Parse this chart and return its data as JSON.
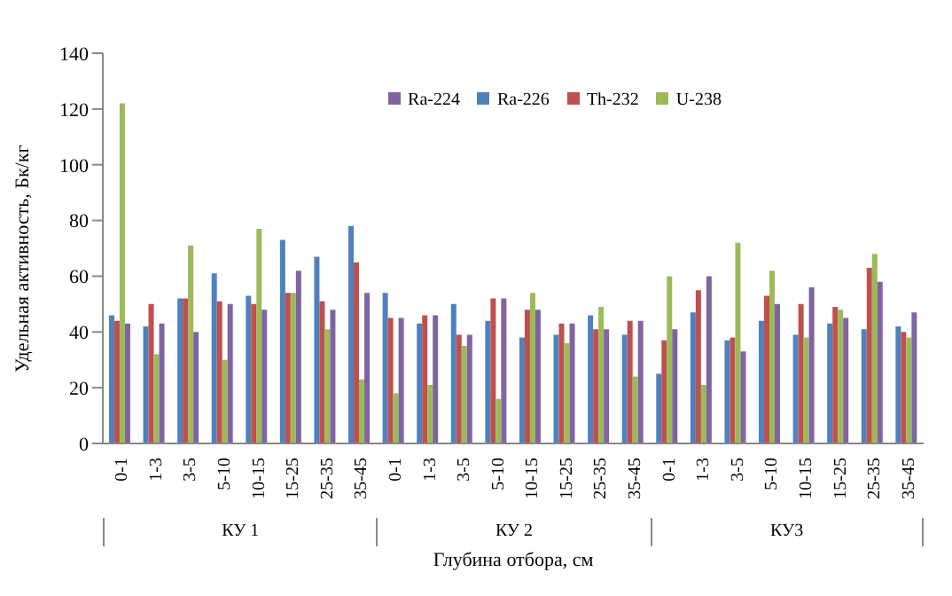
{
  "chart_data": {
    "type": "bar",
    "ylabel": "Удельная активность, Бк/кг",
    "xlabel": "Глубина отбора, см",
    "annotations": [
      "КУ 1",
      "КУ 2",
      "КУ3"
    ],
    "categories": [
      "0-1",
      "1-3",
      "3-5",
      "5-10",
      "10-15",
      "15-25",
      "25-35",
      "35-45",
      "0-1",
      "1-3",
      "3-5",
      "5-10",
      "10-15",
      "15-25",
      "25-35",
      "35-45",
      "0-1",
      "1-3",
      "3-5",
      "5-10",
      "10-15",
      "15-25",
      "25-35",
      "35-45"
    ],
    "series": [
      {
        "name": "Ra-226",
        "color": "#4f81bd",
        "values": [
          46,
          42,
          52,
          61,
          53,
          73,
          67,
          78,
          54,
          43,
          50,
          44,
          38,
          39,
          46,
          39,
          25,
          47,
          37,
          44,
          39,
          43,
          41,
          42
        ]
      },
      {
        "name": "Th-232",
        "color": "#c0504d",
        "values": [
          44,
          50,
          52,
          51,
          50,
          54,
          51,
          65,
          45,
          46,
          39,
          52,
          48,
          43,
          41,
          44,
          37,
          55,
          38,
          53,
          50,
          49,
          63,
          40
        ]
      },
      {
        "name": "U-238",
        "color": "#9bbb59",
        "values": [
          122,
          32,
          71,
          30,
          77,
          54,
          41,
          23,
          18,
          21,
          35,
          16,
          54,
          36,
          49,
          24,
          60,
          21,
          72,
          62,
          38,
          48,
          68,
          38
        ]
      },
      {
        "name": "Ra-224",
        "color": "#8064a2",
        "values": [
          43,
          43,
          40,
          50,
          48,
          62,
          48,
          54,
          45,
          46,
          39,
          52,
          48,
          43,
          41,
          44,
          41,
          60,
          33,
          50,
          56,
          45,
          58,
          47
        ]
      }
    ],
    "ylim": [
      0,
      140
    ],
    "yticks": [
      0,
      20,
      40,
      60,
      80,
      100,
      120,
      140
    ],
    "legend": "top"
  }
}
